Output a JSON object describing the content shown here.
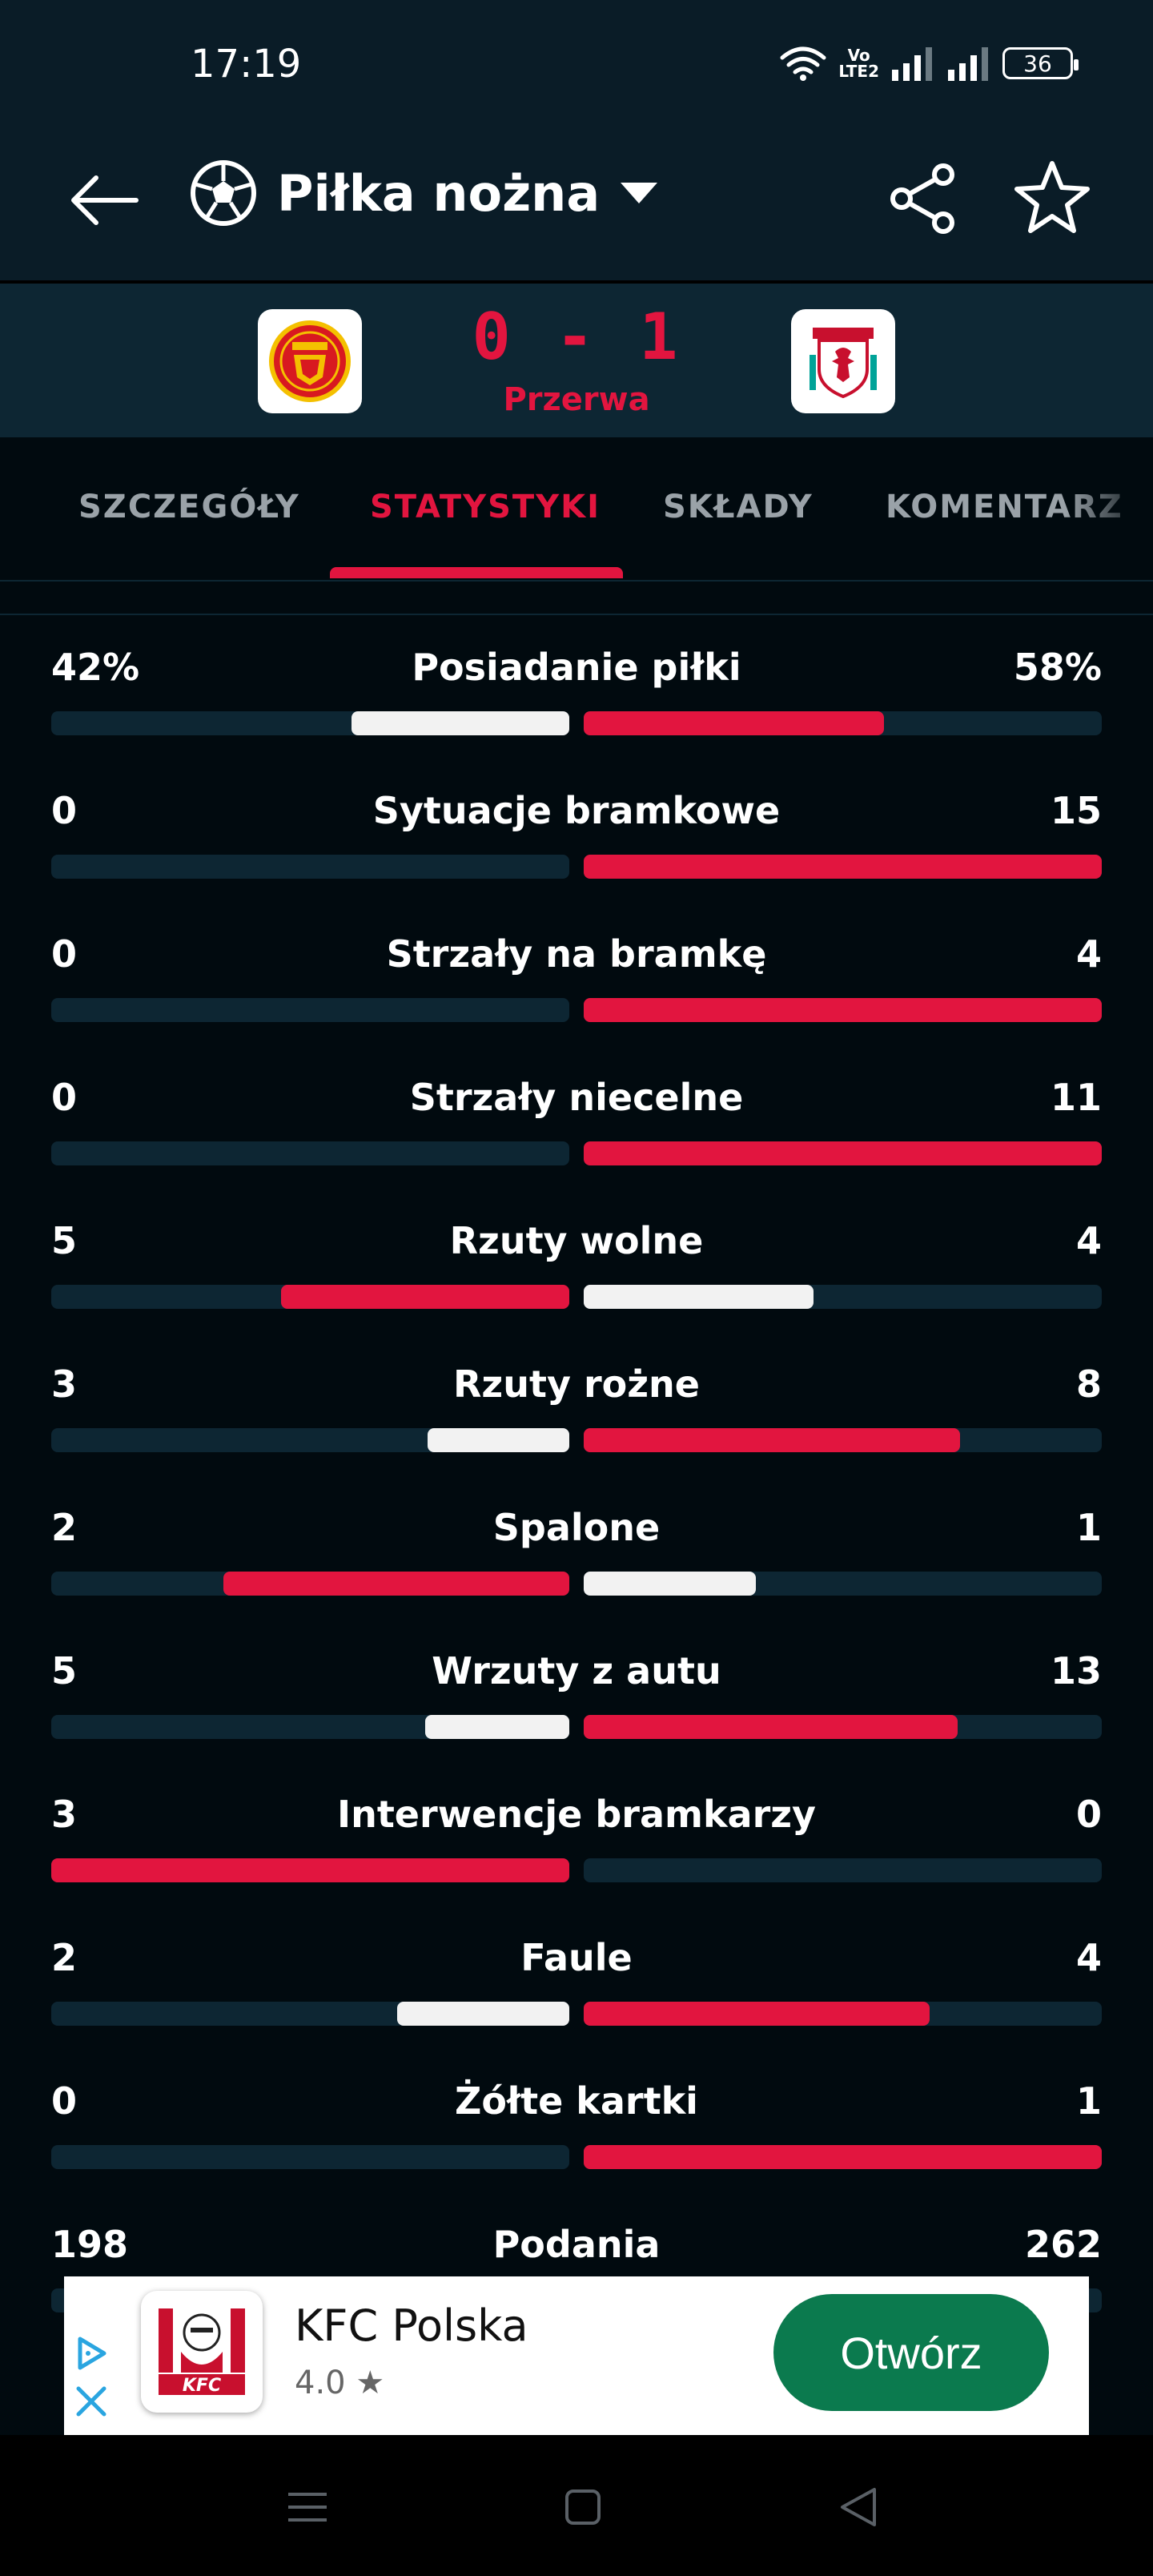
{
  "status_bar": {
    "time": "17:19",
    "volte_line1": "Vo",
    "volte_line2": "LTE2",
    "battery": "36",
    "icons": [
      "wifi-icon",
      "signal-icon",
      "signal-icon",
      "battery-icon"
    ]
  },
  "app_bar": {
    "title": "Piłka nożna",
    "icons": [
      "back-arrow-icon",
      "soccer-ball-icon",
      "dropdown-caret-icon",
      "share-icon",
      "star-icon"
    ]
  },
  "match": {
    "score": "0 - 1",
    "status": "Przerwa",
    "home_crest": "manchester-united-crest",
    "away_crest": "liverpool-crest"
  },
  "tabs": [
    {
      "label": "SZCZEGÓŁY",
      "active": false
    },
    {
      "label": "STATYSTYKI",
      "active": true
    },
    {
      "label": "SKŁADY",
      "active": false
    },
    {
      "label": "KOMENTARZ",
      "active": false
    }
  ],
  "colors": {
    "accent": "#e2153f",
    "home_bar_light": "#f2f2f2",
    "track": "#0d2633",
    "background": "#010a0f",
    "ad_button": "#0b7a4e"
  },
  "stats": [
    {
      "name": "Posiadanie piłki",
      "home": "42%",
      "away": "58%",
      "home_share": 0.42,
      "away_share": 0.58,
      "home_color": "#f2f2f2",
      "away_color": "#e2153f"
    },
    {
      "name": "Sytuacje bramkowe",
      "home": "0",
      "away": "15",
      "home_share": 0,
      "away_share": 1,
      "home_color": "#f2f2f2",
      "away_color": "#e2153f"
    },
    {
      "name": "Strzały na bramkę",
      "home": "0",
      "away": "4",
      "home_share": 0,
      "away_share": 1,
      "home_color": "#f2f2f2",
      "away_color": "#e2153f"
    },
    {
      "name": "Strzały niecelne",
      "home": "0",
      "away": "11",
      "home_share": 0,
      "away_share": 1,
      "home_color": "#f2f2f2",
      "away_color": "#e2153f"
    },
    {
      "name": "Rzuty wolne",
      "home": "5",
      "away": "4",
      "home_share": 0.556,
      "away_share": 0.444,
      "home_color": "#e2153f",
      "away_color": "#f2f2f2"
    },
    {
      "name": "Rzuty rożne",
      "home": "3",
      "away": "8",
      "home_share": 0.273,
      "away_share": 0.727,
      "home_color": "#f2f2f2",
      "away_color": "#e2153f"
    },
    {
      "name": "Spalone",
      "home": "2",
      "away": "1",
      "home_share": 0.667,
      "away_share": 0.333,
      "home_color": "#e2153f",
      "away_color": "#f2f2f2"
    },
    {
      "name": "Wrzuty z autu",
      "home": "5",
      "away": "13",
      "home_share": 0.278,
      "away_share": 0.722,
      "home_color": "#f2f2f2",
      "away_color": "#e2153f"
    },
    {
      "name": "Interwencje bramkarzy",
      "home": "3",
      "away": "0",
      "home_share": 1,
      "away_share": 0,
      "home_color": "#e2153f",
      "away_color": "#f2f2f2"
    },
    {
      "name": "Faule",
      "home": "2",
      "away": "4",
      "home_share": 0.333,
      "away_share": 0.667,
      "home_color": "#f2f2f2",
      "away_color": "#e2153f"
    },
    {
      "name": "Żółte kartki",
      "home": "0",
      "away": "1",
      "home_share": 0,
      "away_share": 1,
      "home_color": "#f2f2f2",
      "away_color": "#e2153f"
    },
    {
      "name": "Podania",
      "home": "198",
      "away": "262",
      "home_share": 0.43,
      "away_share": 0.57,
      "home_color": "#f2f2f2",
      "away_color": "#e2153f"
    }
  ],
  "ad": {
    "title": "KFC Polska",
    "rating": "4.0 ★",
    "button": "Otwórz",
    "logo_text": "KFC"
  },
  "nav_bar": {
    "icons": [
      "menu-icon",
      "home-square-icon",
      "back-triangle-icon"
    ]
  }
}
